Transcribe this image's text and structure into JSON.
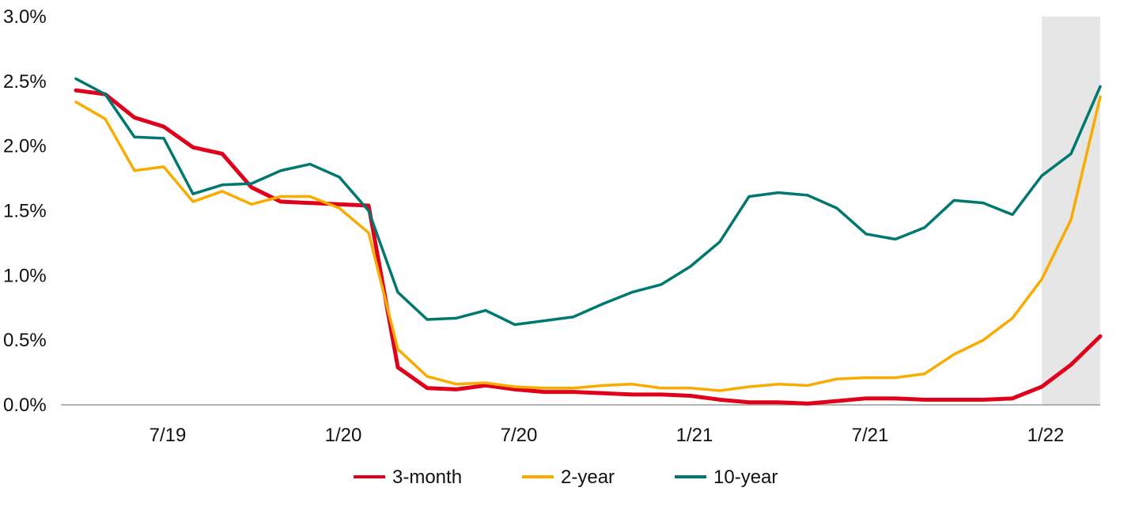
{
  "chart_data": {
    "type": "line",
    "title": "",
    "xlabel": "",
    "ylabel": "",
    "x": [
      "2019-04",
      "2019-05",
      "2019-06",
      "2019-07",
      "2019-08",
      "2019-09",
      "2019-10",
      "2019-11",
      "2019-12",
      "2020-01",
      "2020-02",
      "2020-03",
      "2020-04",
      "2020-05",
      "2020-06",
      "2020-07",
      "2020-08",
      "2020-09",
      "2020-10",
      "2020-11",
      "2020-12",
      "2021-01",
      "2021-02",
      "2021-03",
      "2021-04",
      "2021-05",
      "2021-06",
      "2021-07",
      "2021-08",
      "2021-09",
      "2021-10",
      "2021-11",
      "2021-12",
      "2022-01",
      "2022-02",
      "2022-03"
    ],
    "x_ticks": [
      {
        "x": "2019-07",
        "label": "7/19"
      },
      {
        "x": "2020-01",
        "label": "1/20"
      },
      {
        "x": "2020-07",
        "label": "7/20"
      },
      {
        "x": "2021-01",
        "label": "1/21"
      },
      {
        "x": "2021-07",
        "label": "7/21"
      },
      {
        "x": "2022-01",
        "label": "1/22"
      }
    ],
    "y_ticks": [
      {
        "value": 0.0,
        "label": "0.0%"
      },
      {
        "value": 0.5,
        "label": "0.5%"
      },
      {
        "value": 1.0,
        "label": "1.0%"
      },
      {
        "value": 1.5,
        "label": "1.5%"
      },
      {
        "value": 2.0,
        "label": "2.0%"
      },
      {
        "value": 2.5,
        "label": "2.5%"
      },
      {
        "value": 3.0,
        "label": "3.0%"
      }
    ],
    "ylim": [
      0,
      3.0
    ],
    "grid": false,
    "shaded_region": {
      "from": "2022-01",
      "to": "2022-03",
      "color": "#e6e6e6"
    },
    "legend_position": "bottom-center",
    "series": [
      {
        "name": "3-month",
        "color": "#e0001b",
        "values": [
          2.43,
          2.4,
          2.22,
          2.15,
          1.99,
          1.94,
          1.68,
          1.57,
          1.56,
          1.55,
          1.54,
          0.29,
          0.13,
          0.12,
          0.15,
          0.12,
          0.1,
          0.1,
          0.09,
          0.08,
          0.08,
          0.07,
          0.04,
          0.02,
          0.02,
          0.01,
          0.03,
          0.05,
          0.05,
          0.04,
          0.04,
          0.04,
          0.05,
          0.14,
          0.31,
          0.53
        ]
      },
      {
        "name": "2-year",
        "color": "#f9ab00",
        "values": [
          2.34,
          2.21,
          1.81,
          1.84,
          1.57,
          1.65,
          1.55,
          1.61,
          1.61,
          1.52,
          1.33,
          0.43,
          0.22,
          0.16,
          0.17,
          0.14,
          0.13,
          0.13,
          0.15,
          0.16,
          0.13,
          0.13,
          0.11,
          0.14,
          0.16,
          0.15,
          0.2,
          0.21,
          0.21,
          0.24,
          0.39,
          0.5,
          0.67,
          0.97,
          1.43,
          2.38
        ]
      },
      {
        "name": "10-year",
        "color": "#00786f",
        "values": [
          2.52,
          2.4,
          2.07,
          2.06,
          1.63,
          1.7,
          1.71,
          1.81,
          1.86,
          1.76,
          1.5,
          0.87,
          0.66,
          0.67,
          0.73,
          0.62,
          0.65,
          0.68,
          0.78,
          0.87,
          0.93,
          1.07,
          1.26,
          1.61,
          1.64,
          1.62,
          1.52,
          1.32,
          1.28,
          1.37,
          1.58,
          1.56,
          1.47,
          1.77,
          1.94,
          2.46
        ]
      }
    ]
  }
}
